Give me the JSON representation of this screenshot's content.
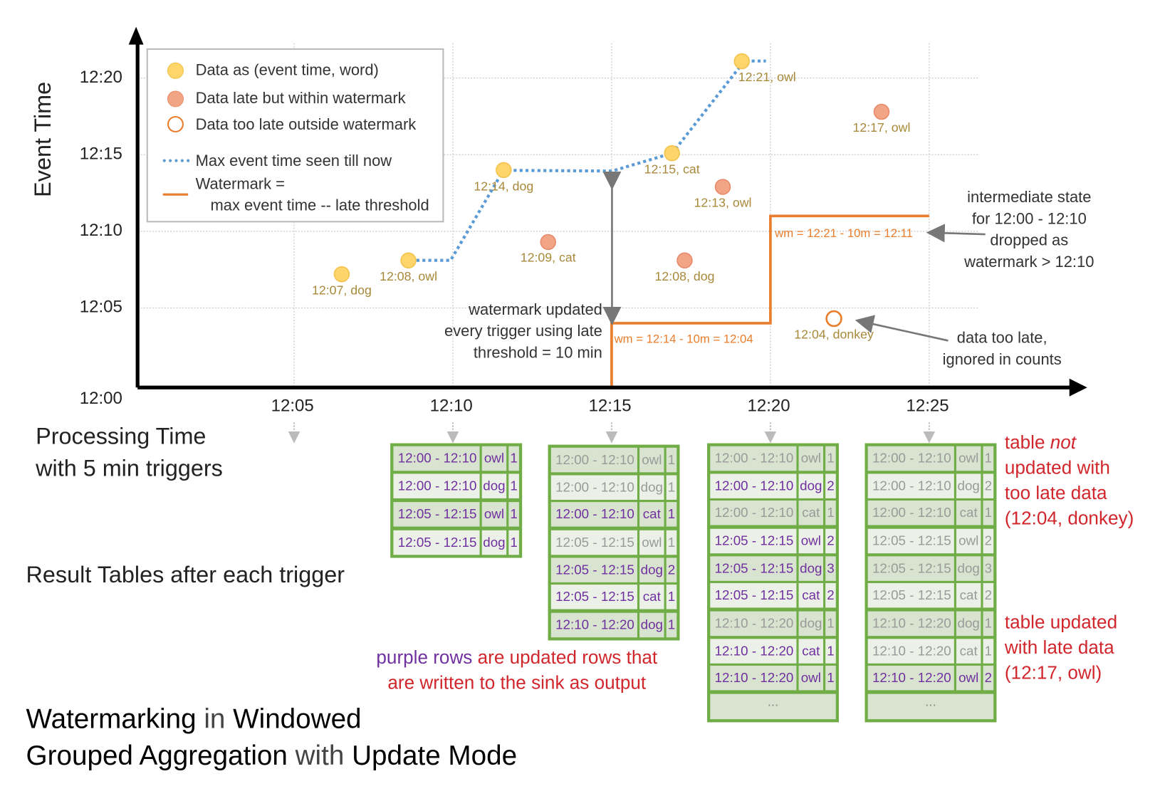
{
  "axes": {
    "y_label": "Event Time",
    "y_ticks": [
      "12:00",
      "12:05",
      "12:10",
      "12:15",
      "12:20"
    ],
    "x_ticks": [
      "12:05",
      "12:10",
      "12:15",
      "12:20",
      "12:25"
    ],
    "x_label_line1": "Processing Time",
    "x_label_line2": "with 5 min triggers"
  },
  "legend": {
    "on_time": "Data as (event time, word)",
    "late": "Data late but within watermark",
    "too_late": "Data too late outside watermark",
    "max_seen": "Max event time seen till now",
    "watermark_1": "Watermark =",
    "watermark_2": "max event time -- late threshold"
  },
  "colors": {
    "on_time": "#fdd56b",
    "late": "#f2a585",
    "too_late": "#e87d2c",
    "max_line": "#5b9bd5",
    "watermark": "#e87d2c",
    "table_border": "#70ad47",
    "updated": "#7030a0",
    "note_red": "#d0262c"
  },
  "points": [
    {
      "label": "12:07, dog",
      "kind": "on_time",
      "proc": "12:06.5",
      "event": "12:07.2"
    },
    {
      "label": "12:08, owl",
      "kind": "on_time",
      "proc": "12:08.6",
      "event": "12:08.1"
    },
    {
      "label": "12:14, dog",
      "kind": "on_time",
      "proc": "12:11.6",
      "event": "12:14"
    },
    {
      "label": "12:09, cat",
      "kind": "late",
      "proc": "12:13",
      "event": "12:09.3"
    },
    {
      "label": "12:15, cat",
      "kind": "on_time",
      "proc": "12:16.9",
      "event": "12:15.1"
    },
    {
      "label": "12:08, dog",
      "kind": "late",
      "proc": "12:17.3",
      "event": "12:08.1"
    },
    {
      "label": "12:13, owl",
      "kind": "late",
      "proc": "12:18.5",
      "event": "12:12.9"
    },
    {
      "label": "12:21, owl",
      "kind": "on_time",
      "proc": "12:19.1",
      "event": "12:21.1"
    },
    {
      "label": "12:04, donkey",
      "kind": "too_late",
      "proc": "12:22",
      "event": "12:04.3"
    },
    {
      "label": "12:17, owl",
      "kind": "late",
      "proc": "12:23.5",
      "event": "12:17.8"
    }
  ],
  "watermarks": [
    {
      "label": "wm = 12:14 - 10m = 12:04"
    },
    {
      "label": "wm = 12:21 - 10m = 12:11"
    }
  ],
  "annotations": {
    "wm_updated": [
      "watermark updated",
      "every trigger using late",
      "threshold = 10 min"
    ],
    "intermediate": [
      "intermediate state",
      "for 12:00 - 12:10",
      "dropped as",
      "watermark > 12:10"
    ],
    "too_late": [
      "data too late,",
      "ignored in counts"
    ],
    "result_tables": "Result Tables after each trigger",
    "purple_rows": "purple rows",
    "purple_rest1": " are updated rows that",
    "purple_rest2": "are written to the sink as output",
    "not_updated_1": "table ",
    "not_updated_not": "not",
    "not_updated_2": "updated with",
    "not_updated_3": "too late data",
    "not_updated_4": "(12:04, donkey)",
    "updated_late": [
      "table updated",
      "with late data",
      "(12:17, owl)"
    ]
  },
  "title": {
    "w1": "Watermarking",
    "w2": " in ",
    "w3": "Windowed",
    "w4": "Grouped Aggregation",
    "w5": " with ",
    "w6": "Update Mode"
  },
  "tables": [
    {
      "trigger": "12:10",
      "rows": [
        [
          "12:00 - 12:10",
          "owl",
          "1",
          true
        ],
        [
          "12:00 - 12:10",
          "dog",
          "1",
          true
        ],
        [
          "12:05 - 12:15",
          "owl",
          "1",
          true
        ],
        [
          "12:05 - 12:15",
          "dog",
          "1",
          true
        ]
      ]
    },
    {
      "trigger": "12:15",
      "rows": [
        [
          "12:00 - 12:10",
          "owl",
          "1",
          false
        ],
        [
          "12:00 - 12:10",
          "dog",
          "1",
          false
        ],
        [
          "12:00 - 12:10",
          "cat",
          "1",
          true
        ],
        [
          "12:05 - 12:15",
          "owl",
          "1",
          false
        ],
        [
          "12:05 - 12:15",
          "dog",
          "2",
          true
        ],
        [
          "12:05 - 12:15",
          "cat",
          "1",
          true
        ],
        [
          "12:10 - 12:20",
          "dog",
          "1",
          true
        ]
      ]
    },
    {
      "trigger": "12:20",
      "more": "...",
      "rows": [
        [
          "12:00 - 12:10",
          "owl",
          "1",
          false
        ],
        [
          "12:00 - 12:10",
          "dog",
          "2",
          true
        ],
        [
          "12:00 - 12:10",
          "cat",
          "1",
          false
        ],
        [
          "12:05 - 12:15",
          "owl",
          "2",
          true
        ],
        [
          "12:05 - 12:15",
          "dog",
          "3",
          true
        ],
        [
          "12:05 - 12:15",
          "cat",
          "2",
          true
        ],
        [
          "12:10 - 12:20",
          "dog",
          "1",
          false
        ],
        [
          "12:10 - 12:20",
          "cat",
          "1",
          true
        ],
        [
          "12:10 - 12:20",
          "owl",
          "1",
          true
        ]
      ]
    },
    {
      "trigger": "12:25",
      "more": "...",
      "rows": [
        [
          "12:00 - 12:10",
          "owl",
          "1",
          false
        ],
        [
          "12:00 - 12:10",
          "dog",
          "2",
          false
        ],
        [
          "12:00 - 12:10",
          "cat",
          "1",
          false
        ],
        [
          "12:05 - 12:15",
          "owl",
          "2",
          false
        ],
        [
          "12:05 - 12:15",
          "dog",
          "3",
          false
        ],
        [
          "12:05 - 12:15",
          "cat",
          "2",
          false
        ],
        [
          "12:10 - 12:20",
          "dog",
          "1",
          false
        ],
        [
          "12:10 - 12:20",
          "cat",
          "1",
          false
        ],
        [
          "12:10 - 12:20",
          "owl",
          "2",
          true
        ]
      ]
    }
  ]
}
